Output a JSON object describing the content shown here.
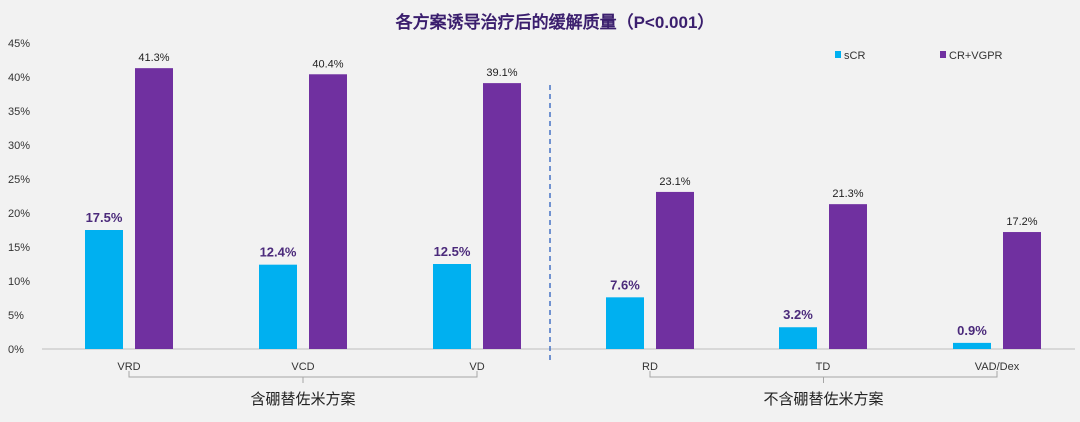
{
  "chart_data": {
    "type": "bar",
    "title": "各方案诱导治疗后的缓解质量（P<0.001）",
    "categories": [
      "VRD",
      "VCD",
      "VD",
      "RD",
      "TD",
      "VAD/Dex"
    ],
    "series": [
      {
        "name": "sCR",
        "values": [
          17.5,
          12.4,
          12.5,
          7.6,
          3.2,
          0.9
        ],
        "color": "#00b0f0"
      },
      {
        "name": "CR+VGPR",
        "values": [
          41.3,
          40.4,
          39.1,
          23.1,
          21.3,
          17.2
        ],
        "color": "#7030a0"
      }
    ],
    "ylim": [
      0,
      45
    ],
    "yticks": [
      "0%",
      "5%",
      "10%",
      "15%",
      "20%",
      "25%",
      "30%",
      "35%",
      "40%",
      "45%"
    ],
    "groups": [
      {
        "label": "含硼替佐米方案",
        "categories": [
          "VRD",
          "VCD",
          "VD"
        ]
      },
      {
        "label": "不含硼替佐米方案",
        "categories": [
          "RD",
          "TD",
          "VAD/Dex"
        ]
      }
    ],
    "grid": false,
    "legend": "top-right",
    "title_color": "#3b1f6e",
    "sCR_label_color": "#4b2a7b"
  }
}
